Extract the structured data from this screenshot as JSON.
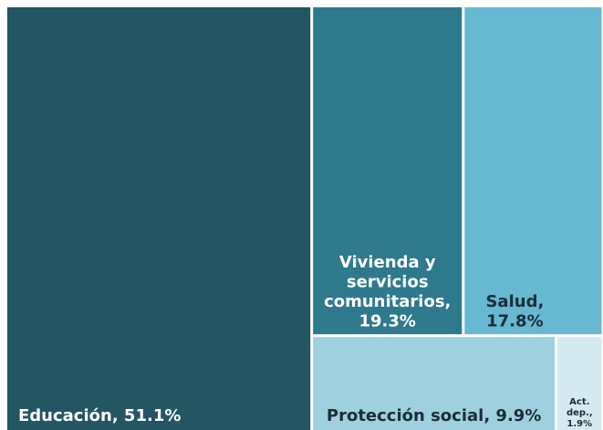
{
  "chart_data": {
    "type": "treemap",
    "categories": [
      "Educación",
      "Vivienda y servicios comunitarios",
      "Salud",
      "Protección social",
      "Act. dep."
    ],
    "values": [
      51.1,
      19.3,
      17.8,
      9.9,
      1.9
    ],
    "labels": [
      [
        "Educación, 51.1%"
      ],
      [
        "Vivienda y",
        "servicios",
        "comunitarios,",
        "19.3%"
      ],
      [
        "Salud,",
        "17.8%"
      ],
      [
        "Protección social, 9.9%"
      ],
      [
        "Act.",
        "dep.,",
        "1.9%"
      ]
    ],
    "colors": [
      "#245563",
      "#2e7a8c",
      "#67b8d1",
      "#9fd0e0",
      "#d5eaf0"
    ]
  }
}
